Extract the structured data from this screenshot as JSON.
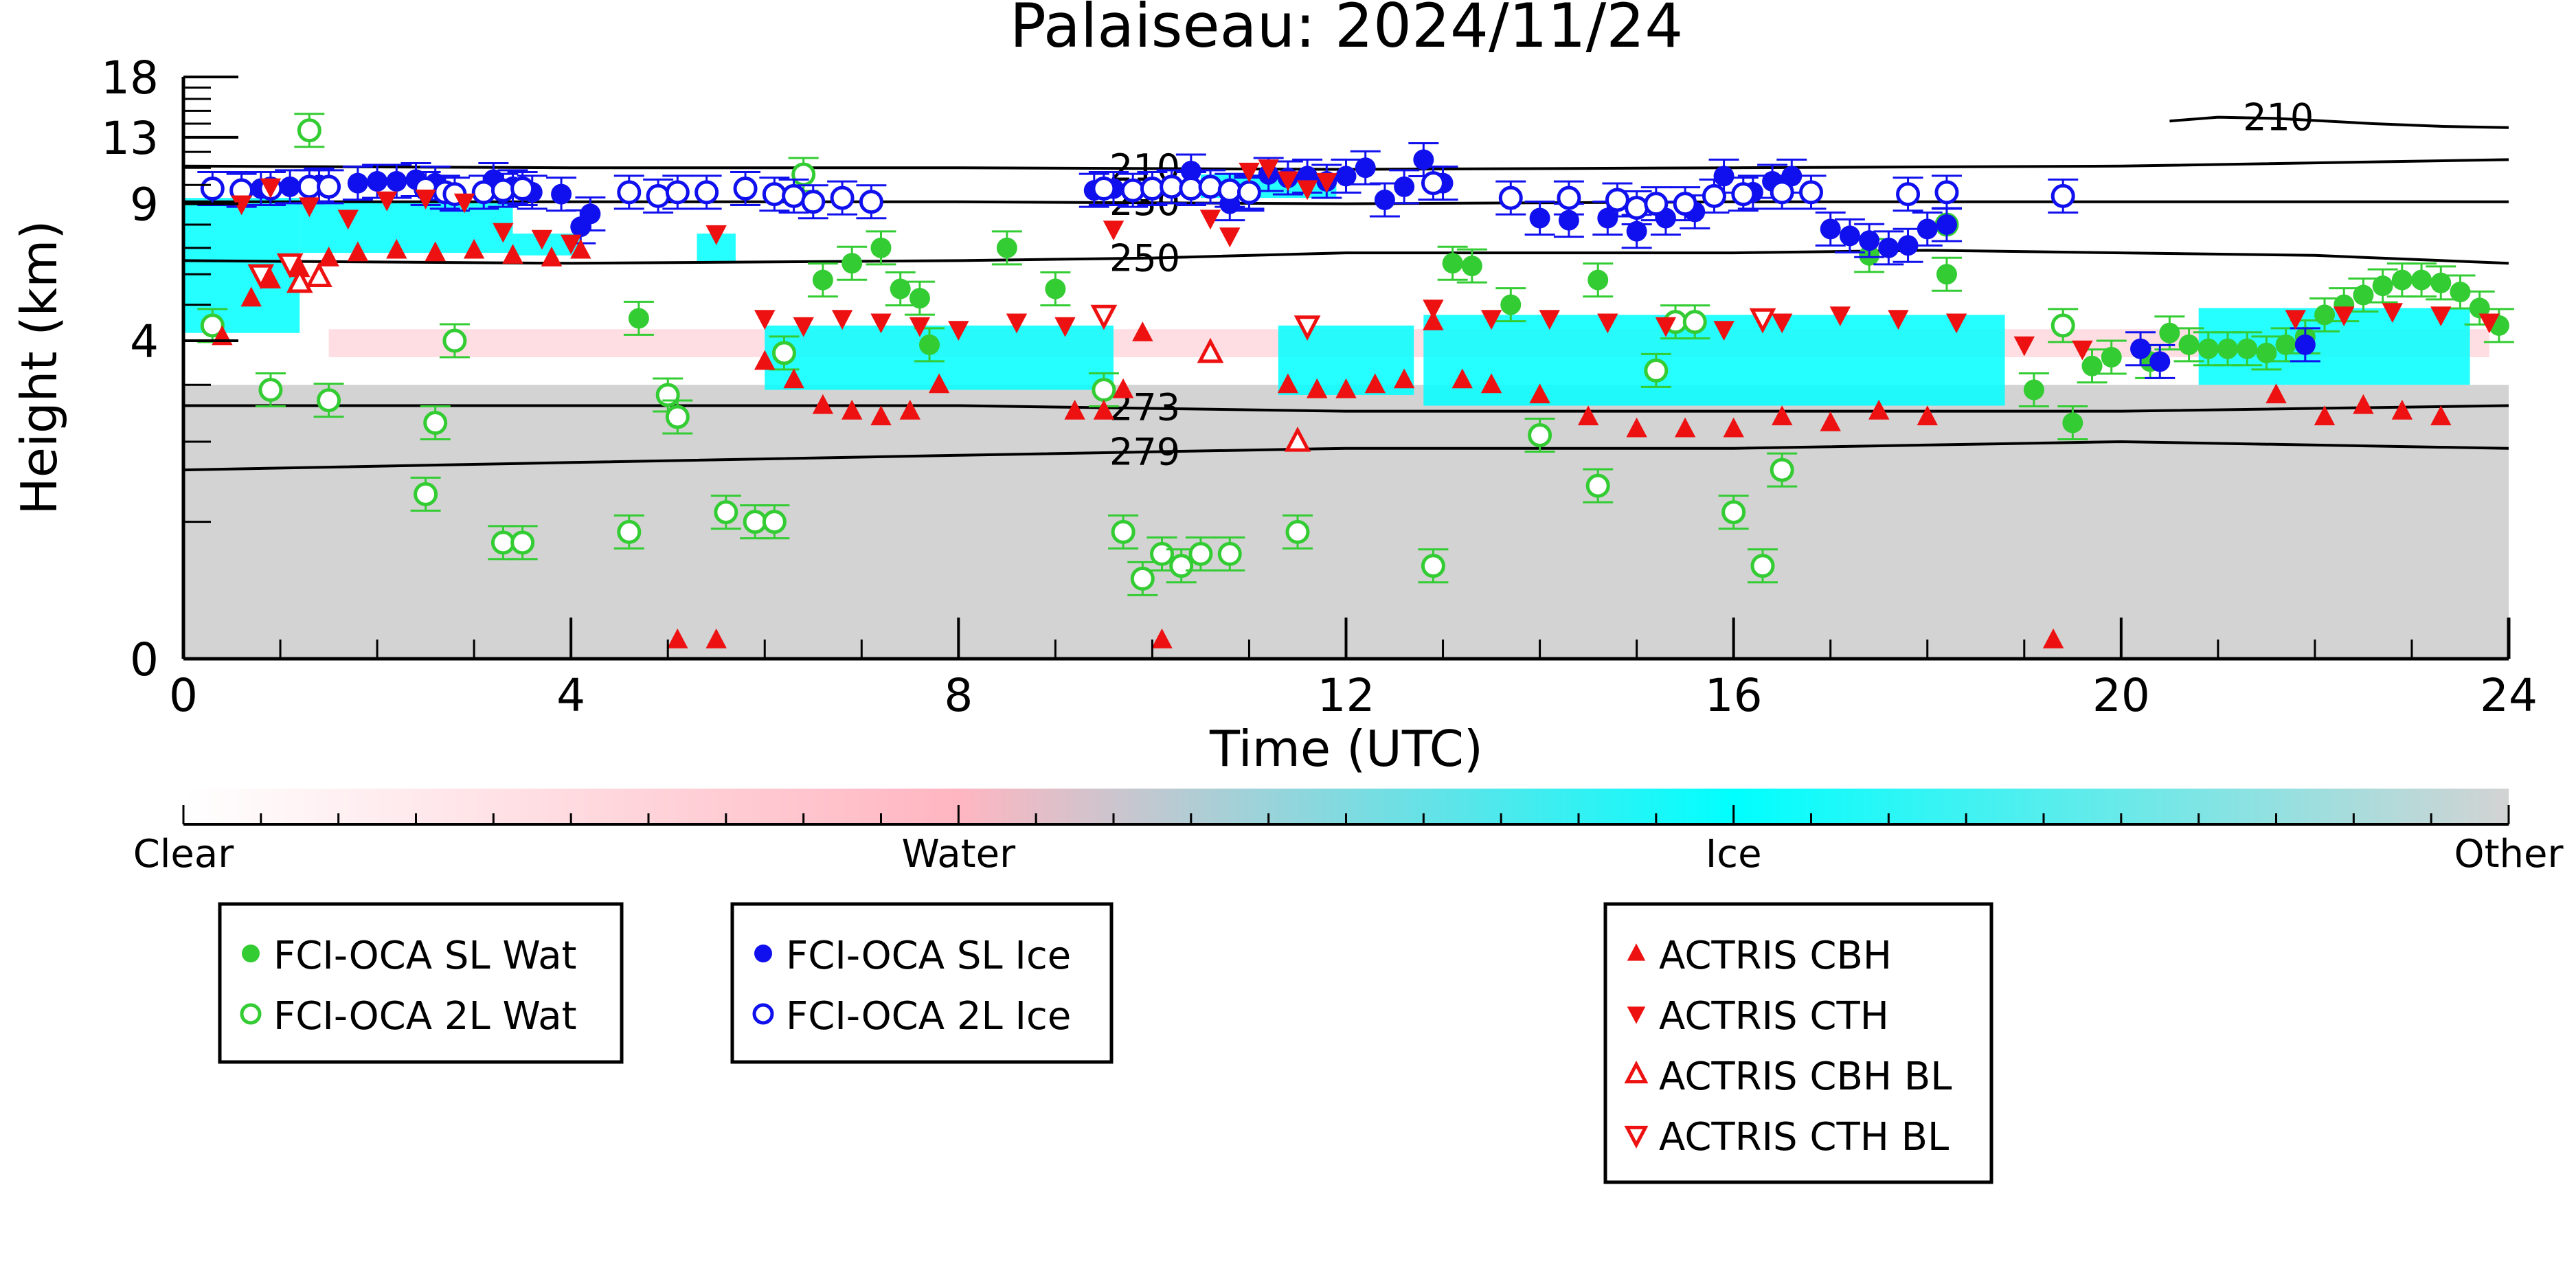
{
  "chart_data": {
    "type": "scatter",
    "title": "Palaiseau: 2024/11/24",
    "xlabel": "Time (UTC)",
    "ylabel": "Height (km)",
    "xlim": [
      0,
      24
    ],
    "ylim": [
      0,
      18
    ],
    "x_ticks": [
      0,
      4,
      8,
      12,
      16,
      20,
      24
    ],
    "x_tick_labels": [
      "0",
      "4",
      "8",
      "12",
      "16",
      "20",
      "24"
    ],
    "y_ticks": [
      0,
      4,
      9,
      13,
      18
    ],
    "y_tick_labels": [
      "0",
      "4",
      "9",
      "13",
      "18"
    ],
    "y_scale": "log(1 + km)",
    "grid": false,
    "background": {
      "clear_air_above_km": 3.0,
      "other_below_km": 2.7,
      "water_layer_km": [
        [
          3.6,
          4.3
        ]
      ],
      "ice_regions": [
        {
          "t": [
            0.0,
            1.2
          ],
          "h": [
            4.2,
            9.3
          ]
        },
        {
          "t": [
            1.2,
            3.4
          ],
          "h": [
            6.8,
            9.1
          ]
        },
        {
          "t": [
            3.4,
            4.1
          ],
          "h": [
            6.7,
            7.6
          ]
        },
        {
          "t": [
            5.3,
            5.7
          ],
          "h": [
            6.4,
            7.6
          ]
        },
        {
          "t": [
            6.0,
            9.6
          ],
          "h": [
            2.9,
            4.4
          ]
        },
        {
          "t": [
            10.5,
            11.9
          ],
          "h": [
            9.3,
            10.6
          ]
        },
        {
          "t": [
            11.3,
            12.7
          ],
          "h": [
            2.8,
            4.4
          ]
        },
        {
          "t": [
            12.8,
            18.8
          ],
          "h": [
            2.6,
            4.7
          ]
        },
        {
          "t": [
            20.8,
            23.6
          ],
          "h": [
            3.0,
            4.9
          ]
        }
      ]
    },
    "colorbar": {
      "labels": [
        "Clear",
        "Water",
        "Ice",
        "Other"
      ],
      "colors": [
        "#ffffff",
        "#ffb6c1",
        "#00ffff",
        "#d3d3d3"
      ]
    },
    "contours": [
      {
        "label": "210",
        "x": [
          0,
          4,
          8,
          12,
          16,
          20,
          24
        ],
        "y": [
          11.1,
          11.0,
          11.0,
          10.9,
          11.0,
          11.1,
          11.5
        ]
      },
      {
        "label": "230",
        "x": [
          0,
          4,
          8,
          12,
          16,
          20,
          24
        ],
        "y": [
          9.1,
          9.1,
          9.1,
          9.0,
          9.1,
          9.1,
          9.1
        ]
      },
      {
        "label": "250",
        "x": [
          0,
          4,
          8,
          10,
          12,
          16,
          18,
          20,
          22,
          24
        ],
        "y": [
          6.5,
          6.4,
          6.5,
          6.6,
          6.8,
          6.8,
          6.9,
          6.8,
          6.7,
          6.4
        ]
      },
      {
        "label": "273",
        "x": [
          0,
          4,
          8,
          12,
          16,
          20,
          24
        ],
        "y": [
          2.6,
          2.6,
          2.6,
          2.5,
          2.5,
          2.5,
          2.6
        ]
      },
      {
        "label": "279",
        "x": [
          0,
          4,
          8,
          12,
          16,
          20,
          24
        ],
        "y": [
          1.6,
          1.7,
          1.8,
          1.9,
          1.9,
          2.0,
          1.9
        ]
      },
      {
        "label": "210",
        "x": [
          20.5,
          21,
          21.6,
          22.6,
          23.3,
          24
        ],
        "y": [
          14.2,
          14.5,
          14.4,
          14.0,
          13.8,
          13.7
        ]
      }
    ],
    "series": [
      {
        "name": "FCI-OCA SL Wat",
        "marker": "circle-filled",
        "color": "#33cc33",
        "x": [
          4.7,
          6.6,
          6.9,
          7.2,
          7.4,
          7.6,
          7.7,
          8.5,
          9.0,
          13.1,
          13.3,
          13.7,
          14.6,
          17.4,
          18.2,
          19.1,
          19.5,
          19.7,
          19.9,
          20.3,
          20.5,
          20.7,
          20.9,
          21.1,
          21.3,
          21.5,
          21.7,
          21.9,
          22.1,
          22.3,
          22.5,
          22.7,
          22.9,
          23.1,
          23.3,
          23.5,
          23.7,
          23.9
        ],
        "y": [
          4.6,
          5.8,
          6.4,
          7.0,
          5.5,
          5.2,
          3.9,
          7.0,
          5.5,
          6.4,
          6.3,
          5.0,
          5.8,
          6.7,
          6.0,
          2.9,
          2.3,
          3.4,
          3.6,
          3.5,
          4.2,
          3.9,
          3.8,
          3.8,
          3.8,
          3.7,
          3.9,
          4.1,
          4.7,
          5.0,
          5.3,
          5.6,
          5.8,
          5.8,
          5.7,
          5.4,
          4.9,
          4.4
        ]
      },
      {
        "name": "FCI-OCA 2L Wat",
        "marker": "circle-open",
        "color": "#33cc33",
        "x": [
          0.3,
          0.9,
          1.3,
          1.5,
          2.5,
          2.6,
          2.8,
          3.3,
          3.5,
          4.6,
          5.0,
          5.1,
          5.6,
          5.9,
          6.1,
          6.2,
          6.4,
          9.5,
          9.7,
          9.9,
          10.1,
          10.3,
          10.5,
          10.8,
          11.5,
          12.9,
          14.0,
          14.6,
          15.2,
          15.4,
          15.6,
          16.0,
          16.3,
          16.5,
          18.2,
          19.4
        ],
        "y": [
          4.4,
          2.9,
          13.5,
          2.7,
          1.3,
          2.3,
          4.0,
          0.8,
          0.8,
          0.9,
          2.8,
          2.4,
          1.1,
          1.0,
          1.0,
          3.7,
          10.6,
          2.9,
          0.9,
          0.5,
          0.7,
          0.6,
          0.7,
          0.7,
          0.9,
          0.6,
          2.1,
          1.4,
          3.3,
          4.5,
          4.5,
          1.1,
          0.6,
          1.6,
          8.0,
          4.4
        ]
      },
      {
        "name": "FCI-OCA SL Ice",
        "marker": "circle-filled",
        "color": "#1010ee",
        "x": [
          0.6,
          0.8,
          1.1,
          1.4,
          1.8,
          2.0,
          2.2,
          2.4,
          2.6,
          3.2,
          3.4,
          3.6,
          3.9,
          4.1,
          4.2,
          9.4,
          9.6,
          10.4,
          10.8,
          11.0,
          11.2,
          11.4,
          11.6,
          11.8,
          12.0,
          12.2,
          12.4,
          12.6,
          12.8,
          13.0,
          14.0,
          14.3,
          14.7,
          15.0,
          15.3,
          15.6,
          15.9,
          16.2,
          16.4,
          16.6,
          17.0,
          17.2,
          17.4,
          17.6,
          17.8,
          18.0,
          18.2,
          20.2,
          20.4,
          21.9
        ],
        "y": [
          9.8,
          9.8,
          9.9,
          10.0,
          10.1,
          10.2,
          10.2,
          10.3,
          10.1,
          10.3,
          9.9,
          9.6,
          9.5,
          7.9,
          8.5,
          9.7,
          9.8,
          10.8,
          9.0,
          9.5,
          10.6,
          10.4,
          10.5,
          10.2,
          10.5,
          11.0,
          9.2,
          9.9,
          11.5,
          10.1,
          8.3,
          8.2,
          8.3,
          7.7,
          8.3,
          8.6,
          10.5,
          9.6,
          10.2,
          10.5,
          7.8,
          7.5,
          7.3,
          7.0,
          7.1,
          7.8,
          8.0,
          3.8,
          3.5,
          3.9
        ]
      },
      {
        "name": "FCI-OCA 2L Ice",
        "marker": "circle-open",
        "color": "#1010ee",
        "x": [
          0.3,
          0.6,
          0.9,
          1.3,
          1.5,
          2.5,
          2.7,
          2.8,
          3.1,
          3.3,
          3.5,
          4.6,
          4.9,
          5.1,
          5.4,
          5.8,
          6.1,
          6.3,
          6.5,
          6.8,
          7.1,
          9.5,
          9.8,
          10.0,
          10.2,
          10.4,
          10.6,
          10.8,
          11.0,
          12.9,
          13.7,
          14.3,
          14.8,
          15.0,
          15.2,
          15.5,
          15.8,
          16.1,
          16.5,
          16.8,
          17.8,
          18.2,
          19.4
        ],
        "y": [
          9.8,
          9.7,
          9.8,
          9.9,
          9.9,
          9.8,
          9.6,
          9.5,
          9.6,
          9.7,
          9.8,
          9.6,
          9.4,
          9.6,
          9.6,
          9.8,
          9.5,
          9.4,
          9.1,
          9.3,
          9.1,
          9.8,
          9.7,
          9.8,
          9.9,
          9.8,
          9.9,
          9.7,
          9.6,
          10.1,
          9.3,
          9.3,
          9.2,
          8.8,
          9.0,
          9.0,
          9.4,
          9.5,
          9.6,
          9.6,
          9.5,
          9.6,
          9.4
        ]
      },
      {
        "name": "ACTRIS CBH",
        "marker": "triangle-up-filled",
        "color": "#ee1111",
        "x": [
          0.4,
          0.7,
          0.9,
          1.2,
          1.5,
          1.8,
          2.2,
          2.6,
          3.0,
          3.4,
          3.8,
          4.1,
          5.1,
          5.5,
          6.0,
          6.3,
          6.6,
          6.9,
          7.2,
          7.5,
          7.8,
          9.2,
          9.5,
          9.7,
          9.9,
          10.1,
          11.4,
          11.7,
          12.0,
          12.3,
          12.6,
          12.9,
          13.2,
          13.5,
          14.0,
          14.5,
          15.0,
          15.5,
          16.0,
          16.5,
          17.0,
          17.5,
          18.0,
          19.3,
          21.6,
          22.1,
          22.5,
          22.9,
          23.3
        ],
        "y": [
          4.1,
          5.2,
          5.8,
          6.2,
          6.6,
          6.8,
          6.9,
          6.8,
          6.9,
          6.7,
          6.6,
          6.9,
          0.1,
          0.1,
          3.5,
          3.1,
          2.6,
          2.5,
          2.4,
          2.5,
          3.0,
          2.5,
          2.5,
          2.9,
          4.2,
          0.1,
          3.0,
          2.9,
          2.9,
          3.0,
          3.1,
          4.5,
          3.1,
          3.0,
          2.8,
          2.4,
          2.2,
          2.2,
          2.2,
          2.4,
          2.3,
          2.5,
          2.4,
          0.1,
          2.8,
          2.4,
          2.6,
          2.5,
          2.4
        ]
      },
      {
        "name": "ACTRIS CTH",
        "marker": "triangle-down-filled",
        "color": "#ee1111",
        "x": [
          0.6,
          0.9,
          1.3,
          1.7,
          2.1,
          2.5,
          2.9,
          3.3,
          3.7,
          4.0,
          5.5,
          6.0,
          6.4,
          6.8,
          7.2,
          7.6,
          8.0,
          8.6,
          9.1,
          9.6,
          10.6,
          10.8,
          11.0,
          11.2,
          11.4,
          11.6,
          11.8,
          12.9,
          13.5,
          14.1,
          14.7,
          15.3,
          15.9,
          16.5,
          17.1,
          17.7,
          18.3,
          19.0,
          19.6,
          21.8,
          22.3,
          22.8,
          23.3,
          23.8
        ],
        "y": [
          9.0,
          9.9,
          8.9,
          8.3,
          9.2,
          9.3,
          9.1,
          7.7,
          7.4,
          7.2,
          7.6,
          4.6,
          4.4,
          4.6,
          4.5,
          4.4,
          4.3,
          4.5,
          4.4,
          7.8,
          8.3,
          7.5,
          10.8,
          11.0,
          10.3,
          9.8,
          10.2,
          4.9,
          4.6,
          4.6,
          4.5,
          4.4,
          4.3,
          4.5,
          4.7,
          4.6,
          4.5,
          3.9,
          3.8,
          4.6,
          4.7,
          4.8,
          4.7,
          4.5
        ]
      },
      {
        "name": "ACTRIS CBH BL",
        "marker": "triangle-up-open",
        "color": "#ee1111",
        "x": [
          1.2,
          1.4,
          10.6,
          11.5
        ],
        "y": [
          5.7,
          5.9,
          3.7,
          2.0
        ]
      },
      {
        "name": "ACTRIS CTH BL",
        "marker": "triangle-down-open",
        "color": "#ee1111",
        "x": [
          0.8,
          1.1,
          9.5,
          11.6,
          16.3
        ],
        "y": [
          6.0,
          6.4,
          4.7,
          4.4,
          4.6
        ]
      }
    ],
    "legend_groups": [
      {
        "entries": [
          "FCI-OCA SL Wat",
          "FCI-OCA 2L Wat"
        ]
      },
      {
        "entries": [
          "FCI-OCA SL Ice",
          "FCI-OCA 2L Ice"
        ]
      },
      {
        "entries": [
          "ACTRIS CBH",
          "ACTRIS CTH",
          "ACTRIS CBH BL",
          "ACTRIS CTH BL"
        ]
      }
    ]
  }
}
